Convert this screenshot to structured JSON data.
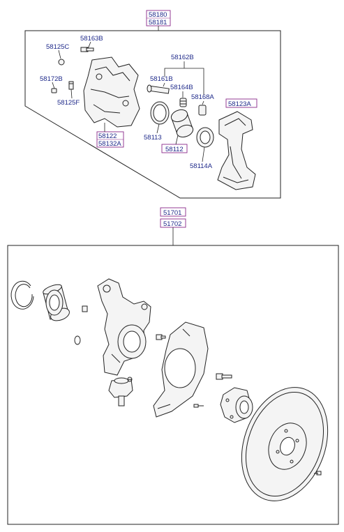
{
  "caliper_assembly": {
    "codes": [
      "58180",
      "58181"
    ],
    "parts": {
      "p58125c": "58125C",
      "p58163b": "58163B",
      "p58172b": "58172B",
      "p58125f": "58125F",
      "p58122": "58122",
      "p58132a": "58132A",
      "p58162b": "58162B",
      "p58161b": "58161B",
      "p58164b": "58164B",
      "p58168a": "58168A",
      "p58123a": "58123A",
      "p58113": "58113",
      "p58112": "58112",
      "p58114a": "58114A"
    }
  },
  "knuckle_assembly": {
    "codes": [
      "51701",
      "51702"
    ]
  },
  "icons": [
    "caliper-body-icon",
    "brake-pad-icon",
    "piston-icon",
    "seal-ring-icon",
    "guide-pin-icon",
    "bolt-icon",
    "snap-ring-icon",
    "wheel-bearing-icon",
    "steering-knuckle-icon",
    "ball-joint-icon",
    "dust-cover-icon",
    "wheel-hub-icon",
    "brake-disc-icon"
  ],
  "colors": {
    "label_text": "#1f2a8a",
    "highlight_box": "#8a2a8a",
    "line": "#222222"
  }
}
